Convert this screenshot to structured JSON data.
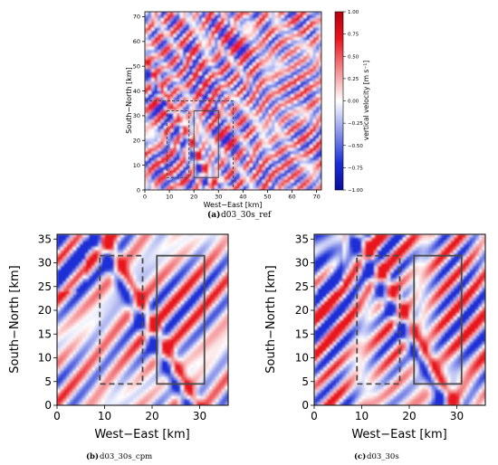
{
  "chart_data": [
    {
      "type": "heatmap",
      "id": "a",
      "caption_label": "(a)",
      "caption_text": "d03_30s_ref",
      "xlabel": "West−East [km]",
      "ylabel": "South−North [km]",
      "xlim": [
        0,
        72
      ],
      "ylim": [
        0,
        72
      ],
      "xticks": [
        0,
        10,
        20,
        30,
        40,
        50,
        60,
        70
      ],
      "yticks": [
        0,
        10,
        20,
        30,
        40,
        50,
        60,
        70
      ],
      "colorbar": {
        "label": "vertical velocity [m s⁻¹]",
        "range": [
          -1.0,
          1.0
        ],
        "ticks": [
          "1.00",
          "0.75",
          "0.50",
          "0.25",
          "0.00",
          "−0.25",
          "−0.50",
          "−0.75",
          "−1.00"
        ],
        "cmap": [
          "#1a2fd6",
          "#ffffff",
          "#e8141c"
        ]
      },
      "boxes": [
        {
          "style": "dashed",
          "x": [
            0,
            36
          ],
          "y": [
            0,
            36
          ]
        },
        {
          "style": "dashed",
          "x": [
            9,
            18
          ],
          "y": [
            5,
            32
          ]
        },
        {
          "style": "solid",
          "x": [
            20,
            30
          ],
          "y": [
            5,
            32
          ]
        }
      ]
    },
    {
      "type": "heatmap",
      "id": "b",
      "caption_label": "(b)",
      "caption_text": "d03_30s_cpm",
      "xlabel": "West−East [km]",
      "ylabel": "South−North [km]",
      "xlim": [
        0,
        36
      ],
      "ylim": [
        0,
        36
      ],
      "xticks": [
        0,
        10,
        20,
        30
      ],
      "yticks": [
        0,
        5,
        10,
        15,
        20,
        25,
        30,
        35
      ],
      "boxes": [
        {
          "style": "dashed",
          "x": [
            9,
            18
          ],
          "y": [
            4.5,
            31.5
          ]
        },
        {
          "style": "solid",
          "x": [
            21,
            31
          ],
          "y": [
            4.5,
            31.5
          ]
        }
      ]
    },
    {
      "type": "heatmap",
      "id": "c",
      "caption_label": "(c)",
      "caption_text": "d03_30s",
      "xlabel": "West−East [km]",
      "ylabel": "South−North [km]",
      "xlim": [
        0,
        36
      ],
      "ylim": [
        0,
        36
      ],
      "xticks": [
        0,
        10,
        20,
        30
      ],
      "yticks": [
        0,
        5,
        10,
        15,
        20,
        25,
        30,
        35
      ],
      "boxes": [
        {
          "style": "dashed",
          "x": [
            9,
            18
          ],
          "y": [
            4.5,
            31.5
          ]
        },
        {
          "style": "solid",
          "x": [
            21,
            31
          ],
          "y": [
            4.5,
            31.5
          ]
        }
      ]
    }
  ]
}
